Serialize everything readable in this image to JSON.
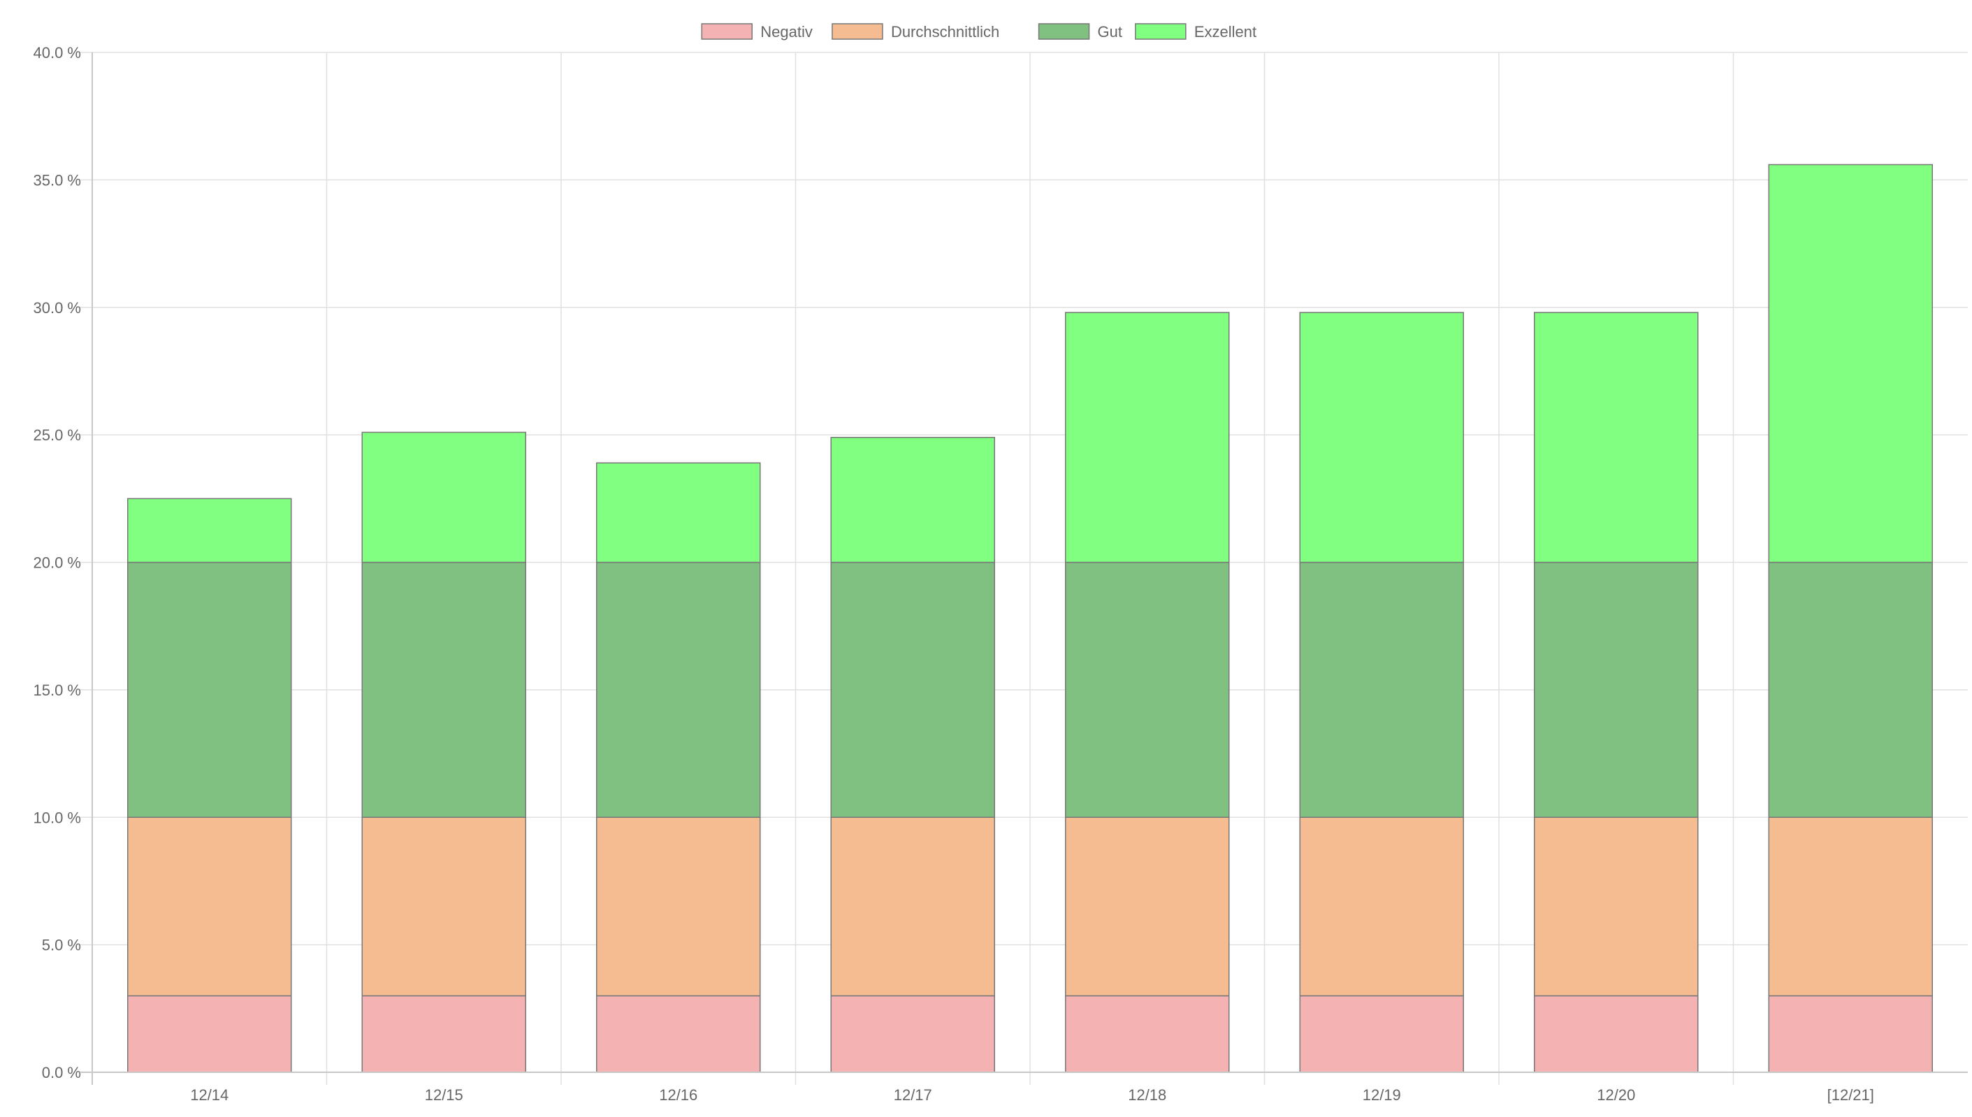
{
  "chart_data": {
    "type": "bar",
    "stacked": true,
    "categories": [
      "12/14",
      "12/15",
      "12/16",
      "12/17",
      "12/18",
      "12/19",
      "12/20",
      "[12/21]"
    ],
    "series": [
      {
        "name": "Negativ",
        "color": "#f5b2b3",
        "values": [
          3.0,
          3.0,
          3.0,
          3.0,
          3.0,
          3.0,
          3.0,
          3.0
        ]
      },
      {
        "name": "Durchschnittlich",
        "color": "#f5bc92",
        "values": [
          7.0,
          7.0,
          7.0,
          7.0,
          7.0,
          7.0,
          7.0,
          7.0
        ]
      },
      {
        "name": "Gut",
        "color": "#80c080",
        "values": [
          10.0,
          10.0,
          10.0,
          10.0,
          10.0,
          10.0,
          10.0,
          10.0
        ]
      },
      {
        "name": "Exzellent",
        "color": "#80ff80",
        "values": [
          2.5,
          5.1,
          3.9,
          4.9,
          9.8,
          9.8,
          9.8,
          15.6
        ]
      }
    ],
    "y_ticks": [
      "0.0 %",
      "5.0 %",
      "10.0 %",
      "15.0 %",
      "20.0 %",
      "25.0 %",
      "30.0 %",
      "35.0 %",
      "40.0 %"
    ],
    "ylim": [
      0,
      40
    ],
    "grid": true,
    "legend_position": "top-center",
    "title": "",
    "xlabel": "",
    "ylabel": ""
  }
}
